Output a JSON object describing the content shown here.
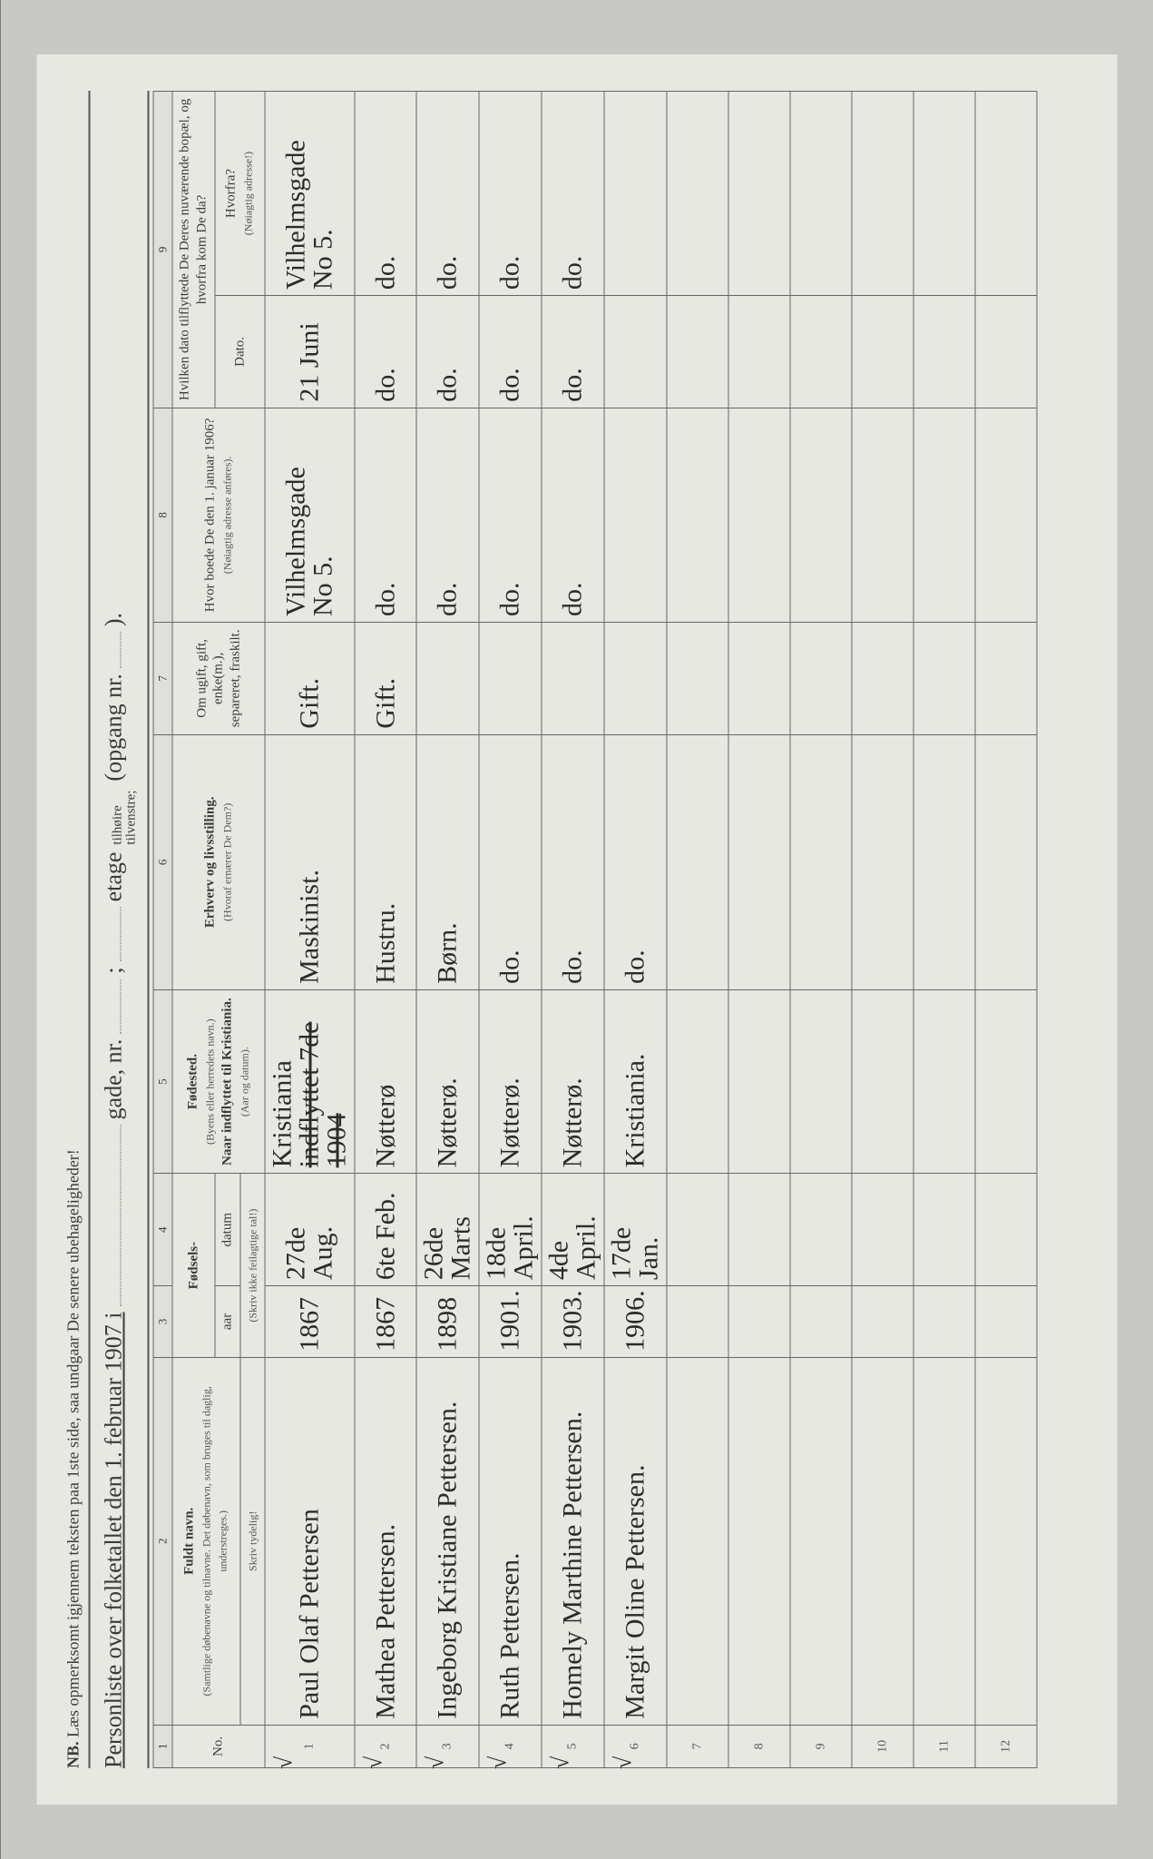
{
  "header": {
    "nb_prefix": "NB.",
    "nb_text": "Læs opmerksomt igjennem teksten paa 1ste side, saa undgaar De senere ubehageligheder!",
    "title_main": "Personliste over folketallet den 1. februar 1907 i",
    "label_gade": "gade, nr.",
    "label_semicolon": ";",
    "label_etage": "etage",
    "label_tilhoire": "tilhøire",
    "label_tilvenstre": "tilvenstre;",
    "label_opgang": "(opgang nr.",
    "label_paren_close": ")."
  },
  "columns": {
    "nums": [
      "1",
      "2",
      "3",
      "4",
      "5",
      "6",
      "7",
      "8",
      "9"
    ],
    "no": "No.",
    "fuldt_navn": "Fuldt navn.",
    "fuldt_navn_sub": "(Samtlige døbenavne og tilnavne. Det døbenavn, som bruges til daglig, understreges.)",
    "skriv_tydelig": "Skriv tydelig!",
    "fodsels": "Fødsels-",
    "aar": "aar",
    "datum": "datum",
    "skriv_ikke": "(Skriv ikke feilagtige tal!)",
    "fodested": "Fødested.",
    "fodested_sub1": "(Byens eller herredets navn.)",
    "fodested_sub2": "Naar indflyttet til Kristiania.",
    "fodested_sub3": "(Aar og datum).",
    "erhverv": "Erhverv og livsstilling.",
    "erhverv_sub": "(Hvoraf ernærer De Dem?)",
    "om_ugift": "Om ugift, gift, enke(m.), separeret, fraskilt.",
    "hvor_boede": "Hvor boede De den 1. januar 1906?",
    "hvor_boede_sub": "(Nøiagtig adresse anføres).",
    "hvilken_dato": "Hvilken dato tilflyttede De Deres nuværende bopæl, og hvorfra kom De da?",
    "dato": "Dato.",
    "hvorfra": "Hvorfra?",
    "hvorfra_sub": "(Nøiagtig adresse!)"
  },
  "rows": [
    {
      "num": "1",
      "check": true,
      "name": "Paul Olaf Pettersen",
      "aar": "1867",
      "datum": "27de Aug.",
      "fodested_lines": [
        "Kristiania",
        "indflyttet 7de 1904"
      ],
      "erhverv": "Maskinist.",
      "ugift": "Gift.",
      "boede_lines": [
        "Vilhelmsgade",
        "No 5."
      ],
      "dato": "21 Juni",
      "hvorfra_lines": [
        "Vilhelmsgade",
        "No 5."
      ]
    },
    {
      "num": "2",
      "check": true,
      "name": "Mathea Pettersen.",
      "aar": "1867",
      "datum": "6te Feb.",
      "fodested_lines": [
        "Nøtterø"
      ],
      "erhverv": "Hustru.",
      "ugift": "Gift.",
      "boede_lines": [
        "do."
      ],
      "dato": "do.",
      "hvorfra_lines": [
        "do."
      ]
    },
    {
      "num": "3",
      "check": true,
      "name": "Ingeborg Kristiane Pettersen.",
      "aar": "1898",
      "datum": "26de Marts",
      "fodested_lines": [
        "Nøtterø."
      ],
      "erhverv": "Børn.",
      "ugift": "",
      "boede_lines": [
        "do."
      ],
      "dato": "do.",
      "hvorfra_lines": [
        "do."
      ]
    },
    {
      "num": "4",
      "check": true,
      "name": "Ruth Pettersen.",
      "aar": "1901.",
      "datum": "18de April.",
      "fodested_lines": [
        "Nøtterø."
      ],
      "erhverv": "do.",
      "ugift": "",
      "boede_lines": [
        "do."
      ],
      "dato": "do.",
      "hvorfra_lines": [
        "do."
      ]
    },
    {
      "num": "5",
      "check": true,
      "name": "Homely Marthine Pettersen.",
      "aar": "1903.",
      "datum": "4de April.",
      "fodested_lines": [
        "Nøtterø."
      ],
      "erhverv": "do.",
      "ugift": "",
      "boede_lines": [
        "do."
      ],
      "dato": "do.",
      "hvorfra_lines": [
        "do."
      ]
    },
    {
      "num": "6",
      "check": true,
      "name": "Margit Oline Pettersen.",
      "aar": "1906.",
      "datum": "17de Jan.",
      "fodested_lines": [
        "Kristiania."
      ],
      "erhverv": "do.",
      "ugift": "",
      "boede_lines": [
        ""
      ],
      "dato": "",
      "hvorfra_lines": [
        ""
      ]
    }
  ],
  "empty_row_nums": [
    "7",
    "8",
    "9",
    "10",
    "11",
    "12"
  ],
  "colors": {
    "page_bg": "#e8e8e2",
    "outer_bg": "#c8c9c4",
    "body_bg": "#2a2a2a",
    "rule": "#666666",
    "ink": "#2b2b2b",
    "print": "#3a3a3a"
  }
}
